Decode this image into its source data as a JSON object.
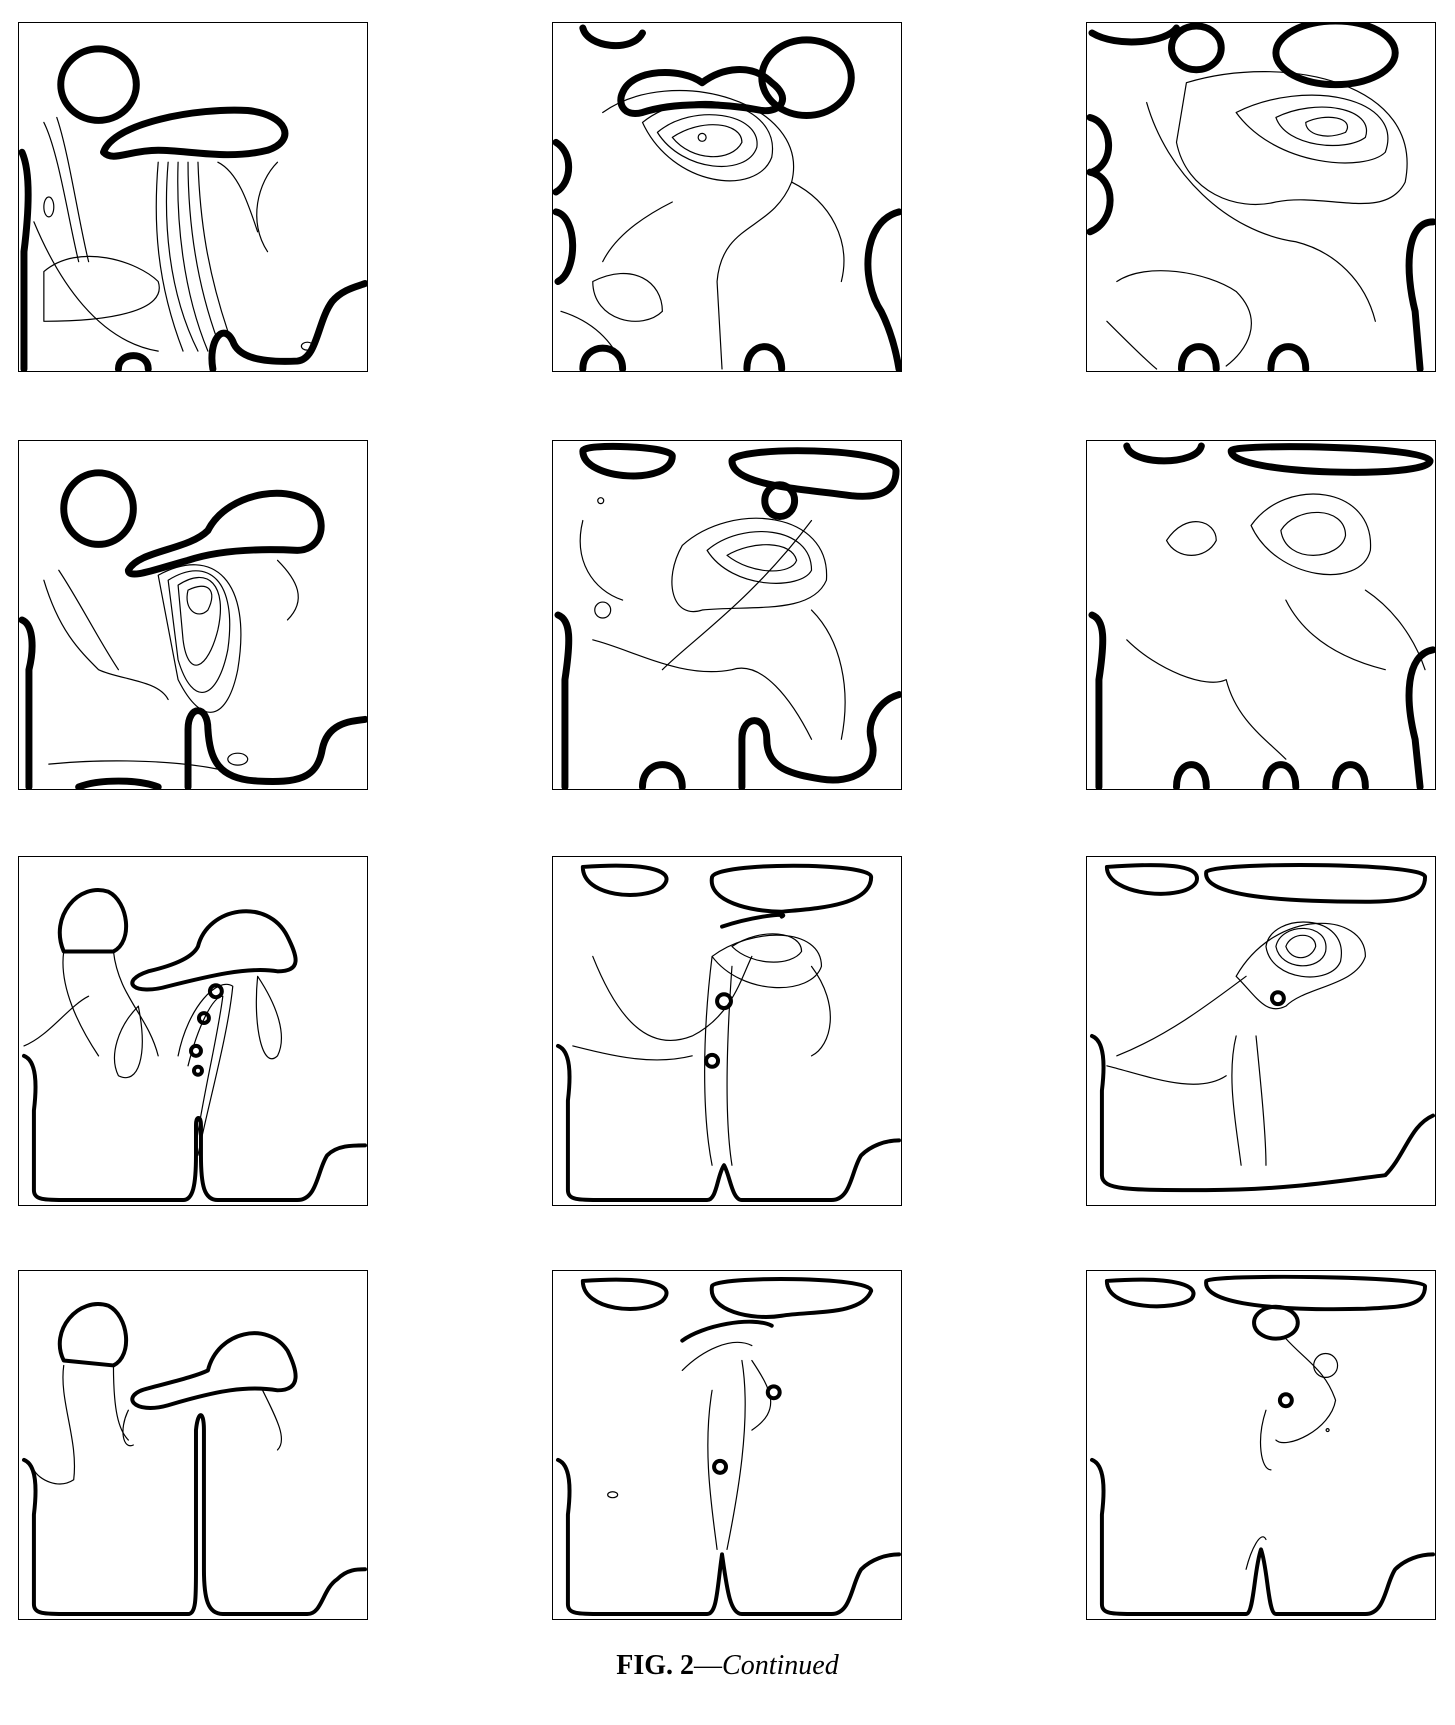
{
  "caption": {
    "label": "FIG. 2",
    "dash": "—",
    "continued": "Continued"
  },
  "grid": {
    "rows": 4,
    "cols": 3
  }
}
